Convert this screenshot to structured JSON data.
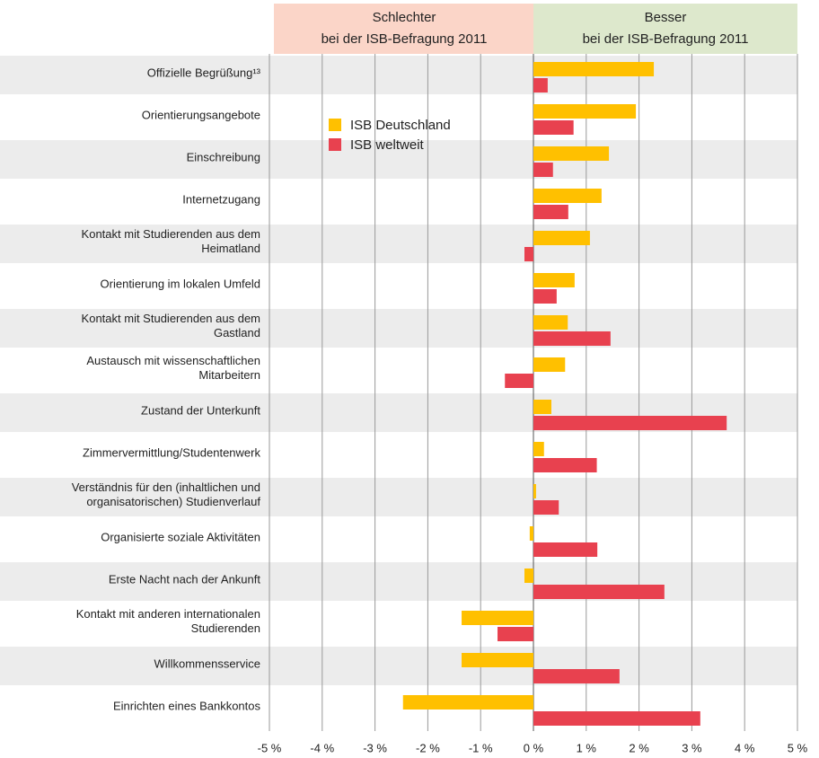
{
  "chart_data": {
    "type": "barh",
    "header_left": [
      "Schlechter",
      "bei der ISB-Befragung 2011"
    ],
    "header_right": [
      "Besser",
      "bei der ISB-Befragung 2011"
    ],
    "categories": [
      "Offizielle Begrüßung¹³",
      "Orientierungsangebote",
      "Einschreibung",
      "Internetzugang",
      "Kontakt mit Studierenden aus dem\nHeimatland",
      "Orientierung im lokalen Umfeld",
      "Kontakt mit Studierenden aus dem\nGastland",
      "Austausch mit wissenschaftlichen\nMitarbeitern",
      "Zustand der Unterkunft",
      "Zimmervermittlung/Studentenwerk",
      "Verständnis für den (inhaltlichen und\norganisatorischen) Studienverlauf",
      "Organisierte soziale Aktivitäten",
      "Erste Nacht nach der Ankunft",
      "Kontakt mit anderen internationalen\nStudierenden",
      "Willkommensservice",
      "Einrichten eines Bankkontos"
    ],
    "series": [
      {
        "name": "ISB Deutschland",
        "color": "#ffc000",
        "values": [
          2.28,
          1.94,
          1.43,
          1.29,
          1.07,
          0.78,
          0.65,
          0.6,
          0.34,
          0.2,
          0.05,
          -0.07,
          -0.17,
          -1.36,
          -1.36,
          -2.47
        ]
      },
      {
        "name": "ISB weltweit",
        "color": "#e8414f",
        "values": [
          0.27,
          0.76,
          0.37,
          0.66,
          -0.17,
          0.44,
          1.46,
          -0.54,
          3.66,
          1.2,
          0.48,
          1.21,
          2.48,
          -0.68,
          1.63,
          3.16
        ]
      }
    ],
    "xlim": [
      -5,
      5
    ],
    "xticks": [
      {
        "value": -5,
        "label": "-5 %"
      },
      {
        "value": -4,
        "label": "-4 %"
      },
      {
        "value": -3,
        "label": "-3 %"
      },
      {
        "value": -2,
        "label": "-2 %"
      },
      {
        "value": -1,
        "label": "-1 %"
      },
      {
        "value": 0,
        "label": "0 %"
      },
      {
        "value": 1,
        "label": "1 %"
      },
      {
        "value": 2,
        "label": "2 %"
      },
      {
        "value": 3,
        "label": "3 %"
      },
      {
        "value": 4,
        "label": "4 %"
      },
      {
        "value": 5,
        "label": "5 %"
      }
    ],
    "grid": true
  }
}
